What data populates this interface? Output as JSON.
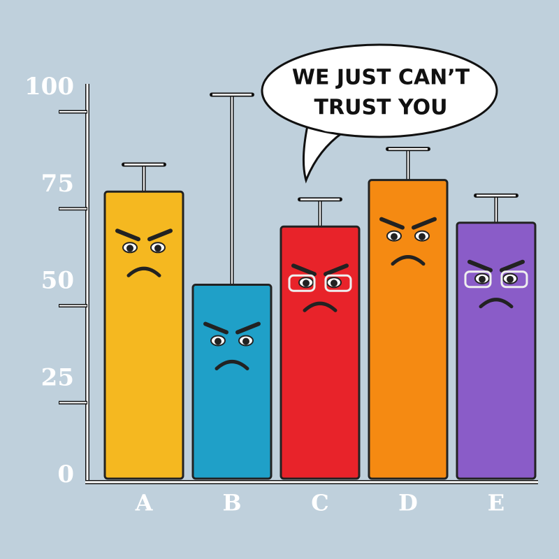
{
  "chart_data": {
    "type": "bar",
    "categories": [
      "A",
      "B",
      "C",
      "D",
      "E"
    ],
    "values": [
      74,
      50,
      65,
      77,
      66
    ],
    "errors": [
      7,
      49,
      7,
      8,
      7
    ],
    "colors": [
      "#f5b820",
      "#1fa0c8",
      "#e8232a",
      "#f58a12",
      "#8a5cc8"
    ],
    "ylim": [
      0,
      100
    ],
    "yticks": [
      0,
      25,
      50,
      75,
      100
    ],
    "annotation": [
      "WE JUST CAN’T",
      "TRUST YOU"
    ]
  }
}
